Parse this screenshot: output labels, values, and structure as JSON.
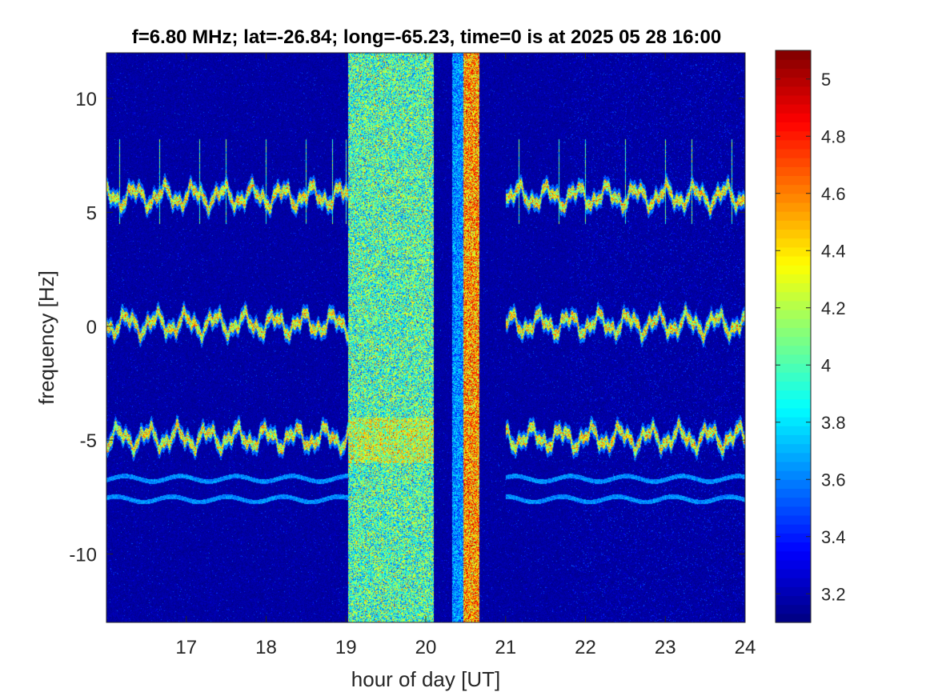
{
  "chart_data": {
    "type": "heatmap",
    "title": "f=6.80 MHz;  lat=-26.84; long=-65.23, time=0 is at 2025 05 28 16:00",
    "xlabel": "hour of day [UT]",
    "ylabel": "frequency [Hz]",
    "xlim": [
      16,
      24
    ],
    "ylim": [
      -13,
      12
    ],
    "xticks": [
      17,
      18,
      19,
      20,
      21,
      22,
      23,
      24
    ],
    "yticks": [
      -10,
      -5,
      0,
      5,
      10
    ],
    "colorbar": {
      "colormap": "jet",
      "clim": [
        3.1,
        5.1
      ],
      "ticks": [
        3.2,
        3.4,
        3.6,
        3.8,
        4,
        4.2,
        4.4,
        4.6,
        4.8,
        5
      ]
    },
    "features": {
      "noise_band_hours": [
        19.03,
        20.1
      ],
      "strong_band_hours": [
        20.47,
        20.67
      ],
      "medium_band_hours": [
        20.33,
        20.47
      ],
      "doppler_traces_hz": [
        5.7,
        0.1,
        -4.9
      ],
      "weak_traces_hz": [
        -6.7,
        -7.6
      ],
      "comb_line_spacing_h": 0.1667,
      "comb_frequency_range_hz": [
        4.5,
        8.2
      ],
      "data_gap_hours": [
        19.03,
        21.0
      ]
    }
  }
}
